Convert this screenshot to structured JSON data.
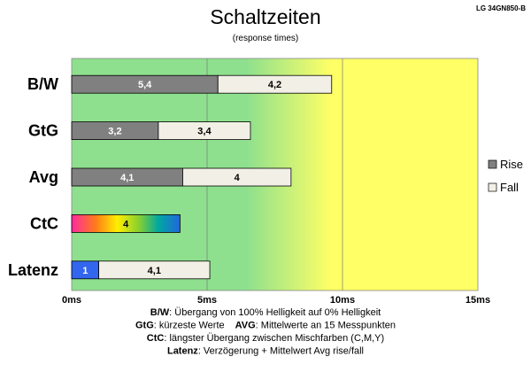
{
  "chart_data": {
    "type": "bar",
    "orientation": "horizontal",
    "stacked": true,
    "title": "Schaltzeiten",
    "subtitle": "(response times)",
    "model": "LG 34GN850-B",
    "categories": [
      "B/W",
      "GtG",
      "Avg",
      "CtC",
      "Latenz"
    ],
    "series": [
      {
        "name": "Rise",
        "values": [
          5.4,
          3.2,
          4.1,
          4,
          1
        ],
        "labels": [
          "5,4",
          "3,2",
          "4,1",
          "4",
          "1"
        ],
        "color": "#808080"
      },
      {
        "name": "Fall",
        "values": [
          4.2,
          3.4,
          4,
          null,
          4.1
        ],
        "labels": [
          "4,2",
          "3,4",
          "4",
          "",
          "4,1"
        ],
        "color": "#f2f0e6"
      }
    ],
    "special_colors": {
      "CtC": "rainbow",
      "Latenz_first": "#3366ee"
    },
    "xlim": [
      0,
      15
    ],
    "ticks": [
      {
        "value": 0,
        "label": "0ms"
      },
      {
        "value": 5,
        "label": "5ms"
      },
      {
        "value": 10,
        "label": "10ms"
      },
      {
        "value": 15,
        "label": "15ms"
      }
    ],
    "background_gradient": [
      "#8ee08e",
      "#ffff66"
    ],
    "grid": "vertical",
    "legend_position": "right",
    "notes": [
      {
        "bold": "B/W",
        "text": ": Übergang von 100% Helligkeit auf 0% Helligkeit"
      },
      {
        "bold": "GtG",
        "text": ": kürzeste Werte",
        "bold2": "AVG",
        "text2": ": Mittelwerte an 15 Messpunkten"
      },
      {
        "bold": "CtC",
        "text": ": längster Übergang zwischen Mischfarben (C,M,Y)"
      },
      {
        "bold": "Latenz",
        "text": ": Verzögerung + Mittelwert Avg rise/fall"
      }
    ]
  }
}
